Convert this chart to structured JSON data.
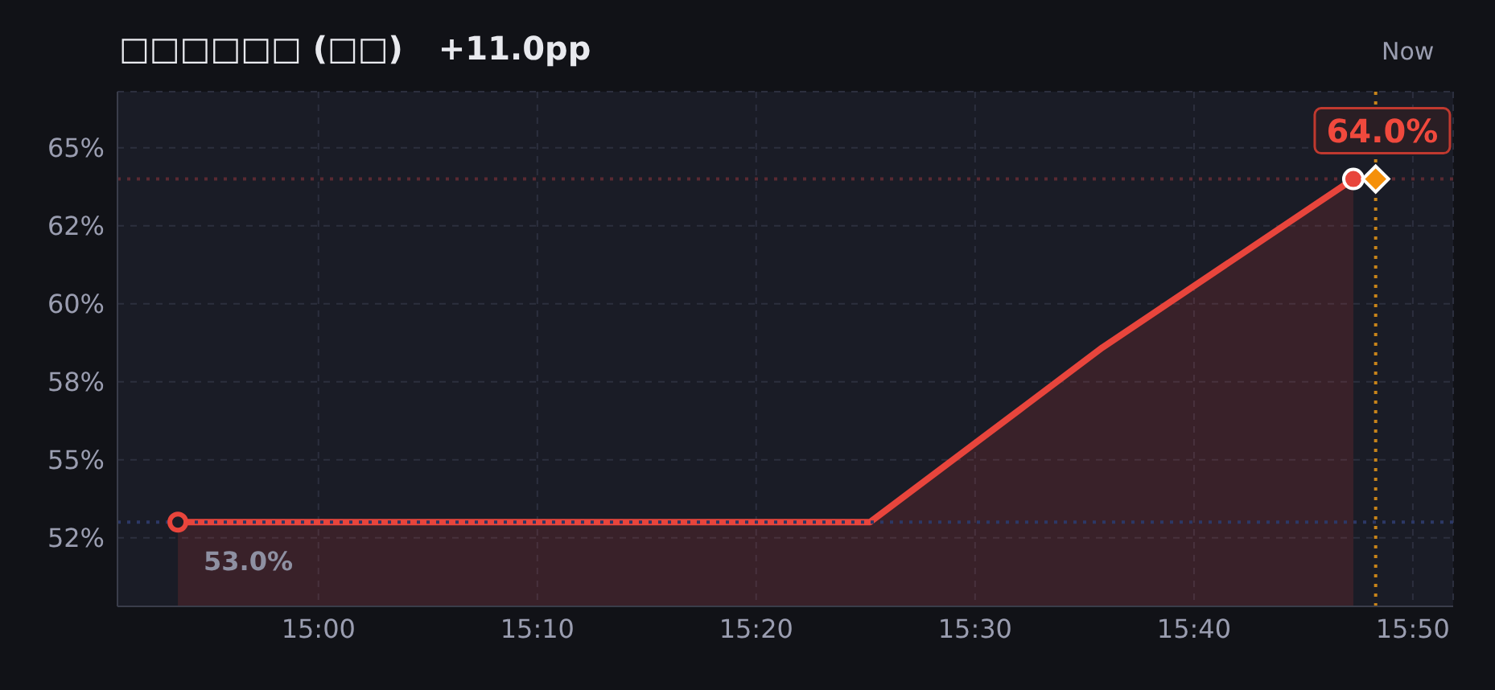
{
  "chart_data": {
    "type": "area",
    "title": "□□□□□□ (□□)",
    "subtitle": "+11.0pp",
    "series": [
      {
        "color": "#e8453c",
        "x": [
          14.893,
          15.42,
          15.597,
          15.788
        ],
        "values": [
          53.0,
          53.0,
          58.6,
          64.0
        ]
      },
      {
        "type": "scatter",
        "color": "#f5900b",
        "marker": "diamond",
        "x": [
          15.805
        ],
        "values": [
          64.0
        ]
      }
    ],
    "xlim": [
      14.847,
      15.864
    ],
    "xticks": [
      {
        "value": 15,
        "label": "15:00"
      },
      {
        "value": 15.1667,
        "label": "15:10"
      },
      {
        "value": 15.3333,
        "label": "15:20"
      },
      {
        "value": 15.5,
        "label": "15:30"
      },
      {
        "value": 15.6667,
        "label": "15:40"
      },
      {
        "value": 15.8333,
        "label": "15:50"
      }
    ],
    "ylim": [
      50.3,
      66.8
    ],
    "yticks": [
      {
        "value": 52.5,
        "label": "52%"
      },
      {
        "value": 55,
        "label": "55%"
      },
      {
        "value": 57.5,
        "label": "58%"
      },
      {
        "value": 60,
        "label": "60%"
      },
      {
        "value": 62.5,
        "label": "62%"
      },
      {
        "value": 65,
        "label": "65%"
      }
    ],
    "grid": true,
    "marker": "circle",
    "line_style": "solid",
    "ref_lines": [
      {
        "axis": "y",
        "value": 64.0,
        "color": "#5a2a32",
        "line_style": "dotted"
      },
      {
        "axis": "y",
        "value": 53.0,
        "color": "#2c3866",
        "line_style": "dotted"
      },
      {
        "axis": "x",
        "value": 15.805,
        "label": "Now",
        "color": "#c8841a",
        "line_style": "dotted"
      }
    ],
    "annotations": [
      {
        "text": "64.0%",
        "x": 15.788,
        "y": 64.0
      },
      {
        "text": "53.0%",
        "x": 14.893,
        "y": 53.0
      }
    ]
  }
}
